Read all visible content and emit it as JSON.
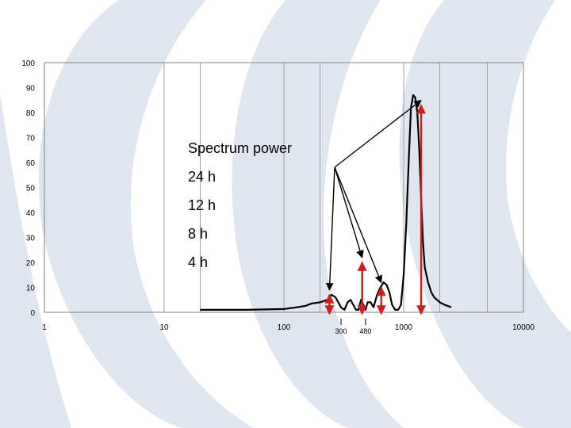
{
  "colors": {
    "background_watermark": "#dfe6f0",
    "curve": "#000000",
    "arrow_red": "#cc1f1f",
    "grid": "#a0a0a0"
  },
  "chart_data": {
    "type": "line",
    "title": "",
    "xlabel": "",
    "ylabel": "",
    "x_scale": "log",
    "xlim": [
      1,
      10000
    ],
    "ylim": [
      0,
      100
    ],
    "grid": {
      "x_lines": true,
      "y_lines": false
    },
    "y_ticks": [
      "0",
      "10",
      "20",
      "30",
      "40",
      "50",
      "60",
      "70",
      "80",
      "90",
      "100"
    ],
    "x_ticks": [
      "1",
      "10",
      "100",
      "1000",
      "10000"
    ],
    "x_marked": [
      "300",
      "480"
    ],
    "series": [
      {
        "x": [
          20,
          50,
          100,
          120,
          150,
          170,
          200,
          230,
          250,
          270,
          300,
          320,
          340,
          360,
          380,
          400,
          420,
          440,
          460,
          480,
          500,
          530,
          560,
          600,
          640,
          680,
          720,
          760,
          800,
          850,
          900,
          950,
          1000,
          1050,
          1100,
          1150,
          1200,
          1250,
          1300,
          1350,
          1400,
          1450,
          1500,
          1600,
          1700,
          1800,
          1900,
          2000,
          2200,
          2500
        ],
        "y": [
          1,
          1,
          1.3,
          1.8,
          2.5,
          3.5,
          4,
          5,
          7,
          6,
          2,
          1,
          4,
          5,
          3,
          1,
          1,
          5,
          3,
          1,
          4,
          4,
          2,
          7,
          10,
          12,
          11,
          8,
          3,
          1,
          1,
          3,
          15,
          35,
          60,
          82,
          87,
          86,
          80,
          65,
          45,
          28,
          18,
          12,
          8,
          6,
          5,
          4,
          3,
          2
        ]
      }
    ],
    "legend": [
      "Spectrum power",
      "24 h",
      "12 h",
      "8 h",
      "4 h"
    ],
    "annotations": [
      {
        "type": "peak_marker",
        "x": 1400,
        "y": 83,
        "label": "24 h"
      },
      {
        "type": "peak_marker",
        "x": 450,
        "y": 20,
        "label": "12 h"
      },
      {
        "type": "peak_marker",
        "x": 650,
        "y": 10,
        "label": "8 h"
      },
      {
        "type": "peak_marker",
        "x": 240,
        "y": 7,
        "label": "4 h"
      }
    ]
  }
}
